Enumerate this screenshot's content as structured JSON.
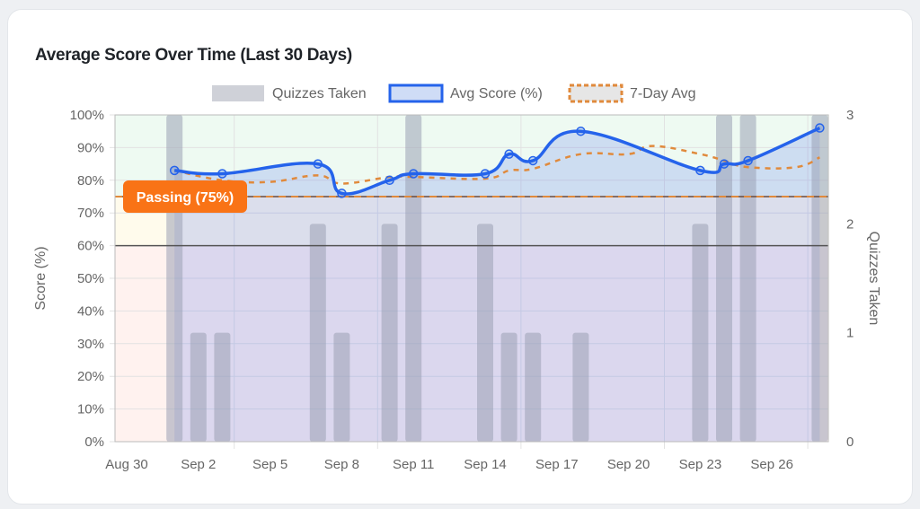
{
  "card": {
    "title": "Average Score Over Time (Last 30 Days)"
  },
  "legend": [
    {
      "label": "Quizzes Taken"
    },
    {
      "label": "Avg Score (%)"
    },
    {
      "label": "7-Day Avg"
    }
  ],
  "annotation": {
    "label": "Passing (75%)",
    "color": "#f97316"
  },
  "colors": {
    "avg": "#2563eb",
    "seven": "#e08a3c",
    "bars": "#9aa0b4"
  },
  "chart_data": {
    "type": "bar+line",
    "title": "Average Score Over Time (Last 30 Days)",
    "x_ticks": [
      "Aug 30",
      "Sep 2",
      "Sep 5",
      "Sep 8",
      "Sep 11",
      "Sep 14",
      "Sep 17",
      "Sep 20",
      "Sep 23",
      "Sep 26"
    ],
    "y_left": {
      "label": "Score (%)",
      "min": 0,
      "max": 100,
      "ticks": [
        "0%",
        "10%",
        "20%",
        "30%",
        "40%",
        "50%",
        "60%",
        "70%",
        "80%",
        "90%",
        "100%"
      ]
    },
    "y_right": {
      "label": "Quizzes Taken",
      "min": 0,
      "max": 3,
      "ticks": [
        "0",
        "1",
        "2",
        "3"
      ]
    },
    "thresholds": {
      "passing": 75,
      "warning": 60
    },
    "quizzes": [
      {
        "date": "Sep 1",
        "v": 3
      },
      {
        "date": "Sep 2",
        "v": 1
      },
      {
        "date": "Sep 3",
        "v": 1
      },
      {
        "date": "Sep 7",
        "v": 2
      },
      {
        "date": "Sep 8",
        "v": 1
      },
      {
        "date": "Sep 10",
        "v": 2
      },
      {
        "date": "Sep 11",
        "v": 3
      },
      {
        "date": "Sep 14",
        "v": 2
      },
      {
        "date": "Sep 15",
        "v": 1
      },
      {
        "date": "Sep 16",
        "v": 1
      },
      {
        "date": "Sep 18",
        "v": 1
      },
      {
        "date": "Sep 23",
        "v": 2
      },
      {
        "date": "Sep 24",
        "v": 3
      },
      {
        "date": "Sep 25",
        "v": 3
      },
      {
        "date": "Sep 28",
        "v": 3
      }
    ],
    "avg_score": [
      {
        "date": "Sep 1",
        "v": 83
      },
      {
        "date": "Sep 3",
        "v": 82
      },
      {
        "date": "Sep 7",
        "v": 85
      },
      {
        "date": "Sep 8",
        "v": 76
      },
      {
        "date": "Sep 10",
        "v": 80
      },
      {
        "date": "Sep 11",
        "v": 82
      },
      {
        "date": "Sep 14",
        "v": 82
      },
      {
        "date": "Sep 15",
        "v": 88
      },
      {
        "date": "Sep 16",
        "v": 86
      },
      {
        "date": "Sep 18",
        "v": 95
      },
      {
        "date": "Sep 23",
        "v": 83
      },
      {
        "date": "Sep 24",
        "v": 85
      },
      {
        "date": "Sep 25",
        "v": 86
      },
      {
        "date": "Sep 28",
        "v": 96
      }
    ],
    "seven_day_avg": [
      {
        "date": "Sep 1",
        "v": 83
      },
      {
        "date": "Sep 3",
        "v": 80
      },
      {
        "date": "Sep 5",
        "v": 79.5
      },
      {
        "date": "Sep 7",
        "v": 81.5
      },
      {
        "date": "Sep 8",
        "v": 79
      },
      {
        "date": "Sep 10",
        "v": 81
      },
      {
        "date": "Sep 11",
        "v": 81
      },
      {
        "date": "Sep 14",
        "v": 80.5
      },
      {
        "date": "Sep 15",
        "v": 83
      },
      {
        "date": "Sep 16",
        "v": 83.5
      },
      {
        "date": "Sep 18",
        "v": 88
      },
      {
        "date": "Sep 20",
        "v": 88
      },
      {
        "date": "Sep 21",
        "v": 90.5
      },
      {
        "date": "Sep 23",
        "v": 88
      },
      {
        "date": "Sep 24",
        "v": 86
      },
      {
        "date": "Sep 25",
        "v": 84
      },
      {
        "date": "Sep 27",
        "v": 84
      },
      {
        "date": "Sep 28",
        "v": 87
      }
    ]
  }
}
